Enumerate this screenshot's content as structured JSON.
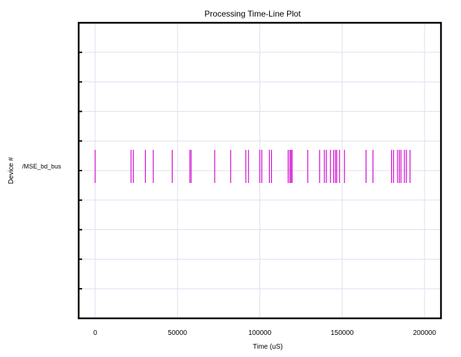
{
  "chart_data": {
    "type": "timeline",
    "title": "Processing Time-Line Plot",
    "xlabel": "Time (uS)",
    "ylabel": "Device #",
    "xlim": [
      -10000,
      210000
    ],
    "x_ticks": [
      0,
      50000,
      100000,
      150000,
      200000
    ],
    "x_tick_labels": [
      "0",
      "50000",
      "100000",
      "150000",
      "200000"
    ],
    "grid": true,
    "series": [
      {
        "name": "/MSE_bd_bus",
        "color": "#cc00cc",
        "events": [
          0,
          21800,
          23200,
          30500,
          35300,
          46800,
          57500,
          58300,
          72600,
          82300,
          91500,
          93100,
          100000,
          101200,
          105800,
          107100,
          117200,
          118200,
          118900,
          119600,
          129100,
          136300,
          139200,
          140400,
          142900,
          144800,
          145900,
          146700,
          148400,
          151400,
          164500,
          168700,
          180000,
          181200,
          183600,
          184700,
          185700,
          187800,
          189000,
          191200
        ]
      }
    ]
  }
}
